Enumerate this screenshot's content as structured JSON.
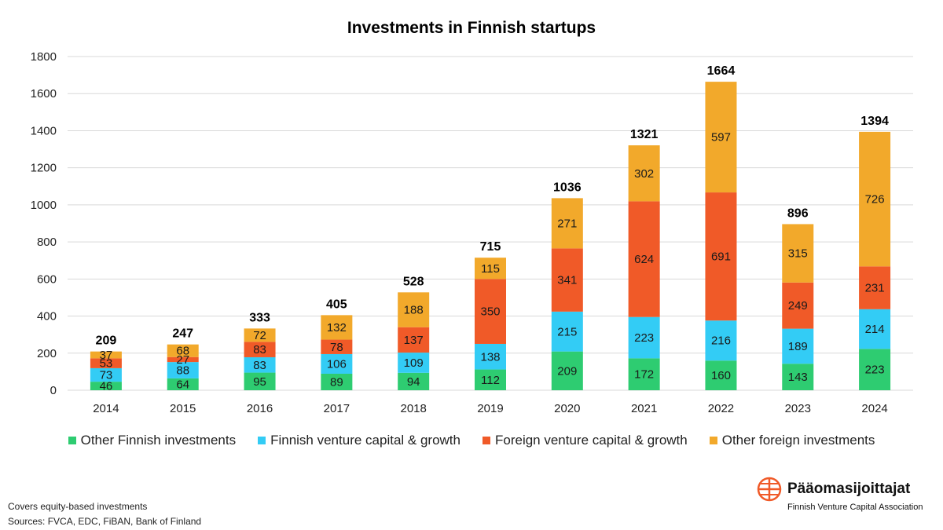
{
  "chart_data": {
    "type": "bar",
    "stacked": true,
    "title": "Investments in Finnish startups",
    "categories": [
      "2014",
      "2015",
      "2016",
      "2017",
      "2018",
      "2019",
      "2020",
      "2021",
      "2022",
      "2023",
      "2024"
    ],
    "series": [
      {
        "name": "Other Finnish investments",
        "color": "#2ecc71",
        "values": [
          46,
          64,
          95,
          89,
          94,
          112,
          209,
          172,
          160,
          143,
          223
        ]
      },
      {
        "name": "Finnish venture capital & growth",
        "color": "#33ccf5",
        "values": [
          73,
          88,
          83,
          106,
          109,
          138,
          215,
          223,
          216,
          189,
          214
        ]
      },
      {
        "name": "Foreign venture capital & growth",
        "color": "#f05a28",
        "values": [
          53,
          27,
          83,
          78,
          137,
          350,
          341,
          624,
          691,
          249,
          231
        ]
      },
      {
        "name": "Other foreign investments",
        "color": "#f2a92b",
        "values": [
          37,
          68,
          72,
          132,
          188,
          115,
          271,
          302,
          597,
          315,
          726
        ]
      }
    ],
    "totals": [
      209,
      247,
      333,
      405,
      528,
      715,
      1036,
      1321,
      1664,
      896,
      1394
    ],
    "ylim": [
      0,
      1800
    ],
    "yticks": [
      0,
      200,
      400,
      600,
      800,
      1000,
      1200,
      1400,
      1600,
      1800
    ],
    "grid": true,
    "legend_position": "bottom"
  },
  "footnote": {
    "line1": "Covers equity-based investments",
    "line2": "Sources: FVCA, EDC, FiBAN, Bank of Finland"
  },
  "logo": {
    "name": "Pääomasijoittajat",
    "tagline": "Finnish Venture Capital Association",
    "icon": "globe-cross-icon",
    "color": "#f05a28"
  }
}
